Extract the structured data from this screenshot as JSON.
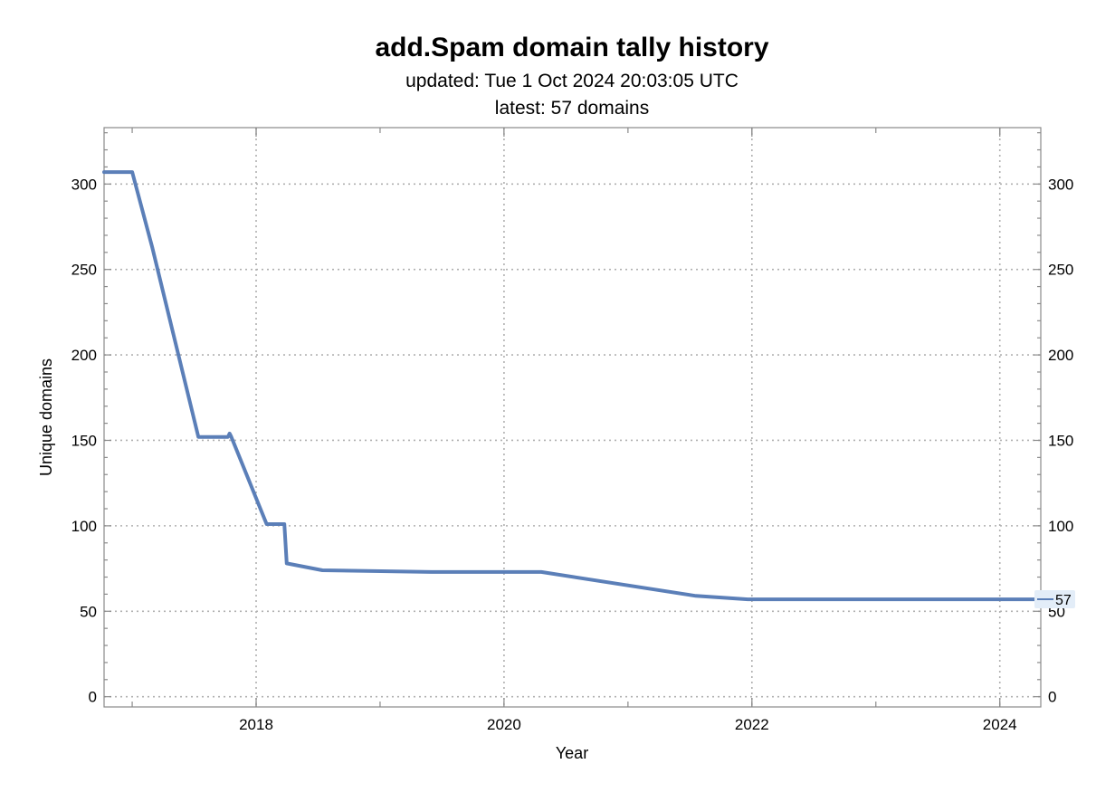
{
  "chart_data": {
    "type": "line",
    "title": "add.Spam domain tally history",
    "subtitles": [
      "updated: Tue 1 Oct 2024 20:03:05 UTC",
      "latest: 57 domains"
    ],
    "xlabel": "Year",
    "ylabel": "Unique domains",
    "xlim": [
      "2016-10-10",
      "2024-05-01"
    ],
    "ylim": [
      -6,
      333
    ],
    "x_ticks": [
      {
        "date": "2018-01-01",
        "label": "2018"
      },
      {
        "date": "2020-01-01",
        "label": "2020"
      },
      {
        "date": "2022-01-01",
        "label": "2022"
      },
      {
        "date": "2024-01-01",
        "label": "2024"
      }
    ],
    "y_ticks": [
      0,
      50,
      100,
      150,
      200,
      250,
      300
    ],
    "grid": true,
    "series_color": "#5b7fb8",
    "series": [
      {
        "values": [
          [
            "2016-10-01",
            307
          ],
          [
            "2017-01-01",
            307
          ],
          [
            "2017-03-01",
            263
          ],
          [
            "2017-07-15",
            152
          ],
          [
            "2017-10-10",
            152
          ],
          [
            "2017-10-15",
            154
          ],
          [
            "2017-10-20",
            152
          ],
          [
            "2018-02-01",
            101
          ],
          [
            "2018-03-25",
            101
          ],
          [
            "2018-04-01",
            78
          ],
          [
            "2018-07-15",
            74
          ],
          [
            "2019-06-01",
            73
          ],
          [
            "2020-04-20",
            73
          ],
          [
            "2021-07-20",
            59
          ],
          [
            "2021-12-20",
            57
          ],
          [
            "2024-04-20",
            57
          ]
        ]
      }
    ],
    "latest_callout": "57"
  }
}
